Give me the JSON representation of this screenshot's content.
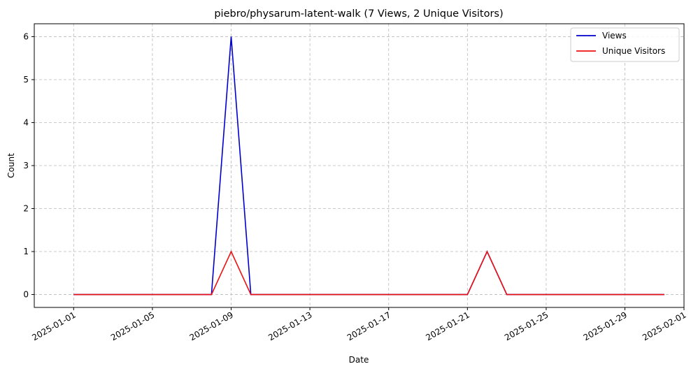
{
  "chart_data": {
    "type": "line",
    "title": "piebro/physarum-latent-walk (7 Views, 2 Unique Visitors)",
    "xlabel": "Date",
    "ylabel": "Count",
    "x_start": "2025-01-01",
    "x": [
      "2025-01-01",
      "2025-01-02",
      "2025-01-03",
      "2025-01-04",
      "2025-01-05",
      "2025-01-06",
      "2025-01-07",
      "2025-01-08",
      "2025-01-09",
      "2025-01-10",
      "2025-01-11",
      "2025-01-12",
      "2025-01-13",
      "2025-01-14",
      "2025-01-15",
      "2025-01-16",
      "2025-01-17",
      "2025-01-18",
      "2025-01-19",
      "2025-01-20",
      "2025-01-21",
      "2025-01-22",
      "2025-01-23",
      "2025-01-24",
      "2025-01-25",
      "2025-01-26",
      "2025-01-27",
      "2025-01-28",
      "2025-01-29",
      "2025-01-30",
      "2025-01-31"
    ],
    "series": [
      {
        "name": "Views",
        "color": "#0000cc",
        "values": [
          0,
          0,
          0,
          0,
          0,
          0,
          0,
          0,
          6,
          0,
          0,
          0,
          0,
          0,
          0,
          0,
          0,
          0,
          0,
          0,
          0,
          1,
          0,
          0,
          0,
          0,
          0,
          0,
          0,
          0,
          0
        ]
      },
      {
        "name": "Unique Visitors",
        "color": "#ee1111",
        "values": [
          0,
          0,
          0,
          0,
          0,
          0,
          0,
          0,
          1,
          0,
          0,
          0,
          0,
          0,
          0,
          0,
          0,
          0,
          0,
          0,
          0,
          1,
          0,
          0,
          0,
          0,
          0,
          0,
          0,
          0,
          0
        ]
      }
    ],
    "x_ticks": [
      "2025-01-01",
      "2025-01-05",
      "2025-01-09",
      "2025-01-13",
      "2025-01-17",
      "2025-01-21",
      "2025-01-25",
      "2025-01-29",
      "2025-02-01"
    ],
    "y_ticks": [
      0,
      1,
      2,
      3,
      4,
      5,
      6
    ],
    "ylim": [
      -0.3,
      6.3
    ],
    "xlim": [
      "2024-12-30",
      "2025-02-01"
    ],
    "grid": true,
    "legend_position": "top-right"
  }
}
